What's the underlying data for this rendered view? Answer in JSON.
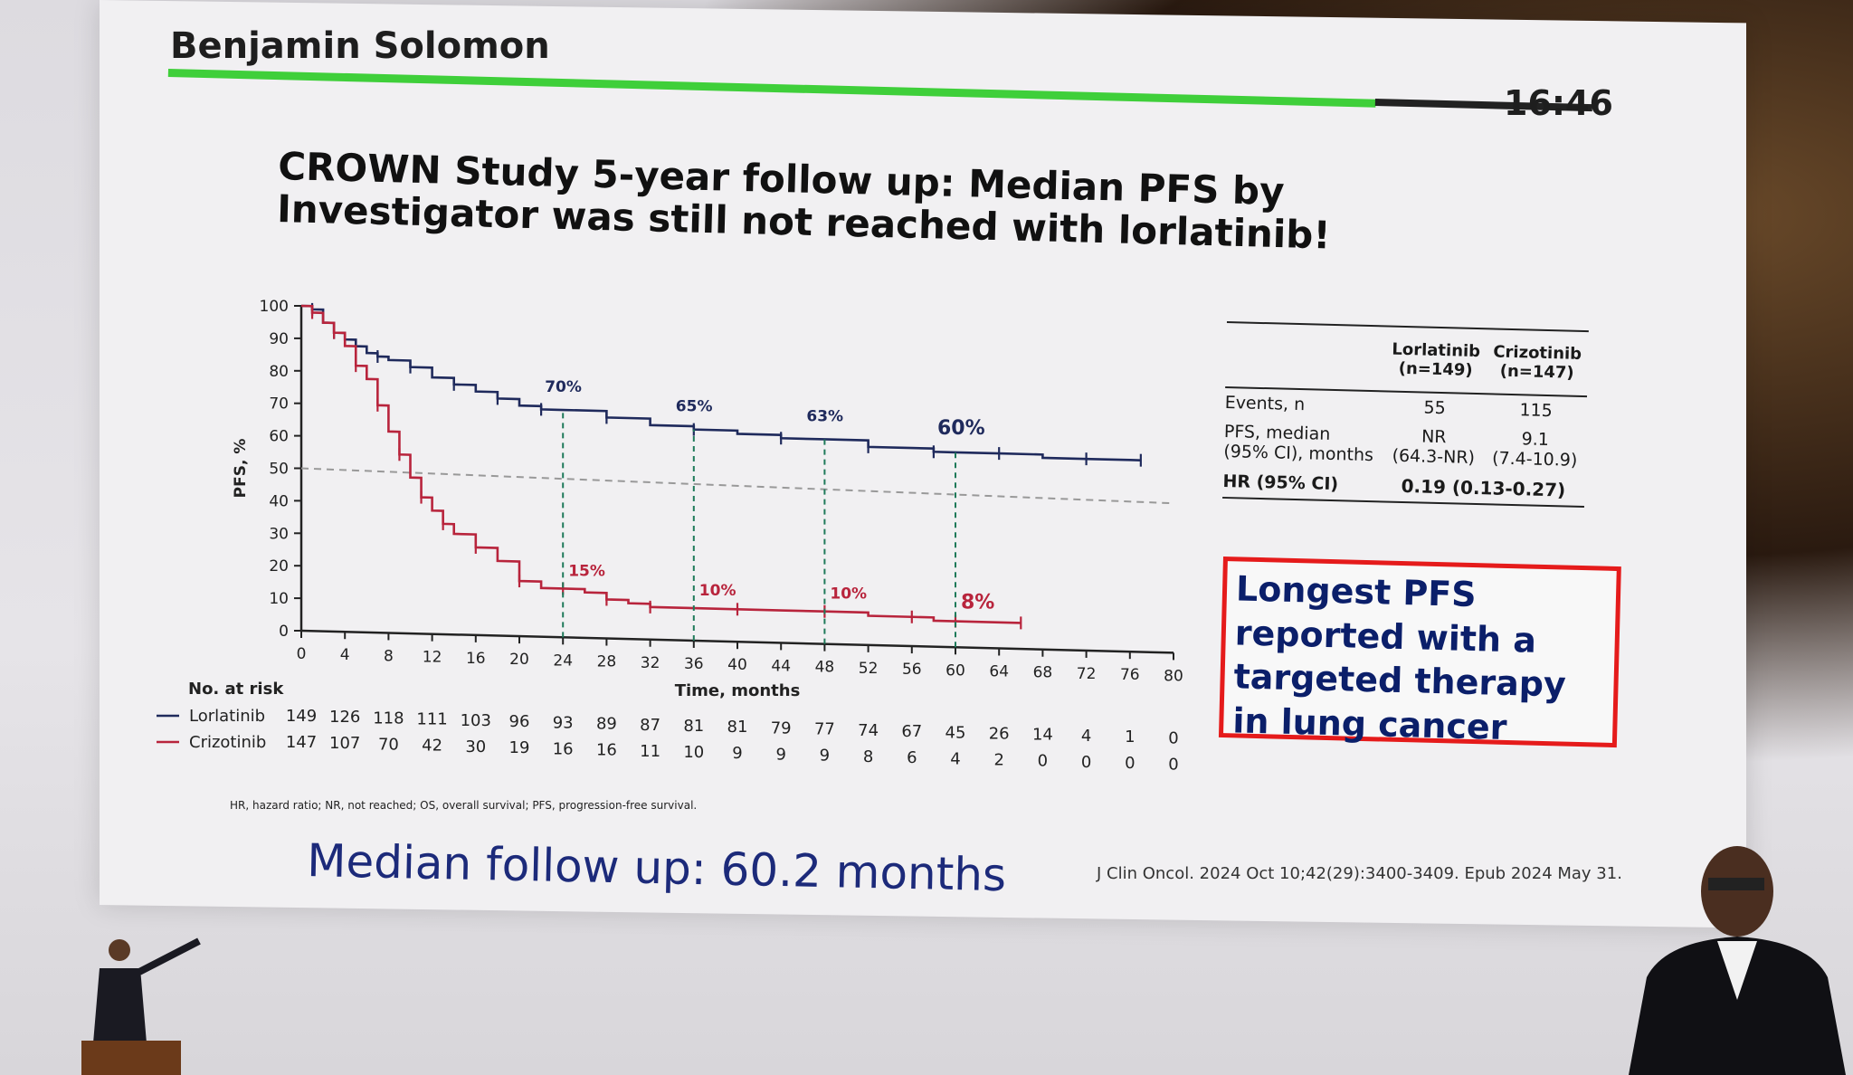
{
  "header": {
    "speaker": "Benjamin Solomon",
    "clock": "16:46"
  },
  "slide": {
    "title": "CROWN Study 5-year follow up: Median PFS by Investigator was still not reached with lorlatinib!",
    "footnote": "HR, hazard ratio; NR, not reached; OS, overall survival; PFS, progression-free survival.",
    "median_follow_up": "Median follow up: 60.2 months",
    "reference": "J Clin Oncol. 2024 Oct 10;42(29):3400-3409. Epub 2024 May 31.",
    "callout": "Longest PFS reported with a targeted therapy in lung cancer"
  },
  "summary_table": {
    "col_a": [
      "Lorlatinib",
      "(n=149)"
    ],
    "col_b": [
      "Crizotinib",
      "(n=147)"
    ],
    "rows": [
      {
        "label": [
          "Events, n"
        ],
        "a": [
          "55"
        ],
        "b": [
          "115"
        ]
      },
      {
        "label": [
          "PFS, median",
          "(95% CI), months"
        ],
        "a": [
          "NR",
          "(64.3-NR)"
        ],
        "b": [
          "9.1",
          "(7.4-10.9)"
        ]
      }
    ],
    "hr_label": "HR (95% CI)",
    "hr_value": "0.19 (0.13-0.27)"
  },
  "chart_data": {
    "type": "line",
    "title": "",
    "xlabel": "Time, months",
    "ylabel": "PFS, %",
    "xlim": [
      0,
      80
    ],
    "ylim": [
      0,
      100
    ],
    "xticks": [
      "0",
      "4",
      "8",
      "12",
      "16",
      "20",
      "24",
      "28",
      "32",
      "36",
      "40",
      "44",
      "48",
      "52",
      "56",
      "60",
      "64",
      "68",
      "72",
      "76",
      "80"
    ],
    "yticks": [
      "0",
      "10",
      "20",
      "30",
      "40",
      "50",
      "60",
      "70",
      "80",
      "90",
      "100"
    ],
    "reference_line": 50,
    "milestones": [
      24,
      36,
      48,
      60
    ],
    "series": [
      {
        "name": "Lorlatinib",
        "color": "#1f2a5c",
        "points": [
          [
            0,
            100
          ],
          [
            1,
            99
          ],
          [
            2,
            95
          ],
          [
            3,
            92
          ],
          [
            4,
            90
          ],
          [
            5,
            88
          ],
          [
            6,
            86
          ],
          [
            7,
            85
          ],
          [
            8,
            84
          ],
          [
            10,
            82
          ],
          [
            12,
            79
          ],
          [
            14,
            77
          ],
          [
            16,
            75
          ],
          [
            18,
            73
          ],
          [
            20,
            71
          ],
          [
            22,
            70
          ],
          [
            24,
            70
          ],
          [
            28,
            68
          ],
          [
            32,
            66
          ],
          [
            36,
            65
          ],
          [
            40,
            64
          ],
          [
            44,
            63
          ],
          [
            48,
            63
          ],
          [
            52,
            61
          ],
          [
            56,
            61
          ],
          [
            58,
            60
          ],
          [
            60,
            60
          ],
          [
            64,
            60
          ],
          [
            68,
            59
          ],
          [
            72,
            59
          ],
          [
            76,
            59
          ],
          [
            77,
            59
          ]
        ],
        "annotations": [
          {
            "x": 24,
            "label": "70%"
          },
          {
            "x": 36,
            "label": "65%"
          },
          {
            "x": 48,
            "label": "63%"
          },
          {
            "x": 60,
            "label": "60%"
          }
        ]
      },
      {
        "name": "Crizotinib",
        "color": "#b8243c",
        "points": [
          [
            0,
            100
          ],
          [
            1,
            98
          ],
          [
            2,
            95
          ],
          [
            3,
            92
          ],
          [
            4,
            88
          ],
          [
            5,
            82
          ],
          [
            6,
            78
          ],
          [
            7,
            70
          ],
          [
            8,
            62
          ],
          [
            9,
            55
          ],
          [
            10,
            48
          ],
          [
            11,
            42
          ],
          [
            12,
            38
          ],
          [
            13,
            34
          ],
          [
            14,
            31
          ],
          [
            16,
            27
          ],
          [
            18,
            23
          ],
          [
            20,
            17
          ],
          [
            22,
            15
          ],
          [
            24,
            15
          ],
          [
            26,
            14
          ],
          [
            28,
            12
          ],
          [
            30,
            11
          ],
          [
            32,
            10
          ],
          [
            36,
            10
          ],
          [
            40,
            10
          ],
          [
            44,
            10
          ],
          [
            48,
            10
          ],
          [
            52,
            9
          ],
          [
            56,
            9
          ],
          [
            58,
            8
          ],
          [
            60,
            8
          ],
          [
            64,
            8
          ],
          [
            66,
            8
          ]
        ],
        "annotations": [
          {
            "x": 24,
            "label": "15%"
          },
          {
            "x": 36,
            "label": "10%"
          },
          {
            "x": 48,
            "label": "10%"
          },
          {
            "x": 60,
            "label": "8%"
          }
        ]
      }
    ],
    "number_at_risk": {
      "label": "No. at risk",
      "rows": [
        {
          "name": "Lorlatinib",
          "color": "#1f2a5c",
          "values": [
            "149",
            "126",
            "118",
            "111",
            "103",
            "96",
            "93",
            "89",
            "87",
            "81",
            "81",
            "79",
            "77",
            "74",
            "67",
            "45",
            "26",
            "14",
            "4",
            "1",
            "0"
          ]
        },
        {
          "name": "Crizotinib",
          "color": "#b8243c",
          "values": [
            "147",
            "107",
            "70",
            "42",
            "30",
            "19",
            "16",
            "16",
            "11",
            "10",
            "9",
            "9",
            "9",
            "8",
            "6",
            "4",
            "2",
            "0",
            "0",
            "0",
            "0"
          ]
        }
      ]
    }
  }
}
